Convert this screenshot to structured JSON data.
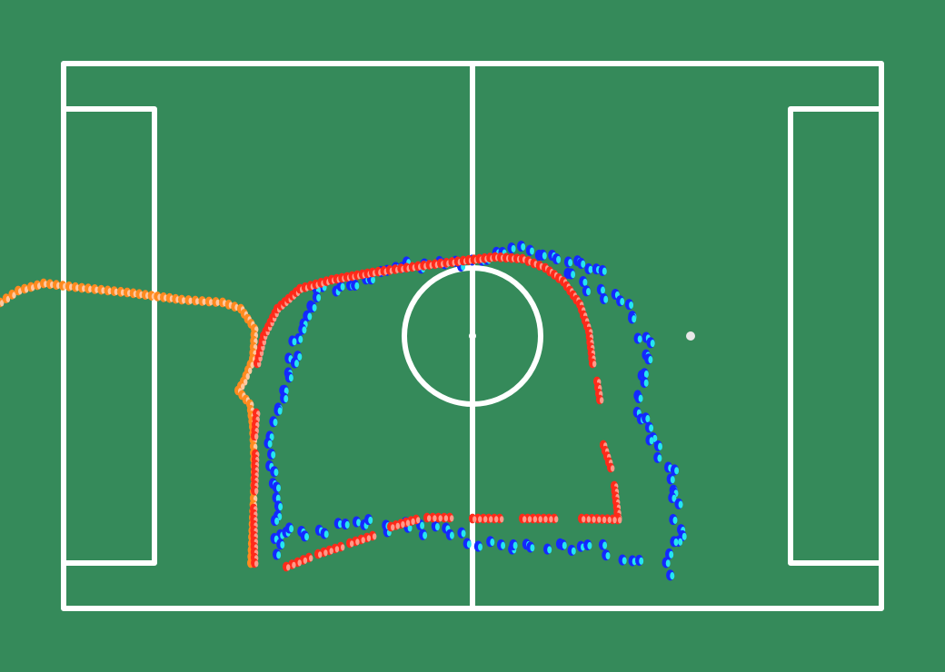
{
  "colors": {
    "pitch": "#358a5a",
    "lines": "#ffffff",
    "ball": "#e8e8e8",
    "track_orange": "#ff8a1f",
    "track_orange_highlight": "#ffc8a0",
    "track_red": "#ff2a1a",
    "track_red_highlight": "#ff9a8a",
    "track_blue": "#1428ff",
    "track_cyan": "#26e6f0"
  },
  "tracks": [
    {
      "name": "orange-track",
      "color_key": "track_orange",
      "highlight_key": "track_orange_highlight"
    },
    {
      "name": "red-track",
      "color_key": "track_red",
      "highlight_key": "track_red_highlight"
    },
    {
      "name": "blue-track",
      "color_key": "track_blue",
      "highlight_key": "track_cyan"
    }
  ]
}
